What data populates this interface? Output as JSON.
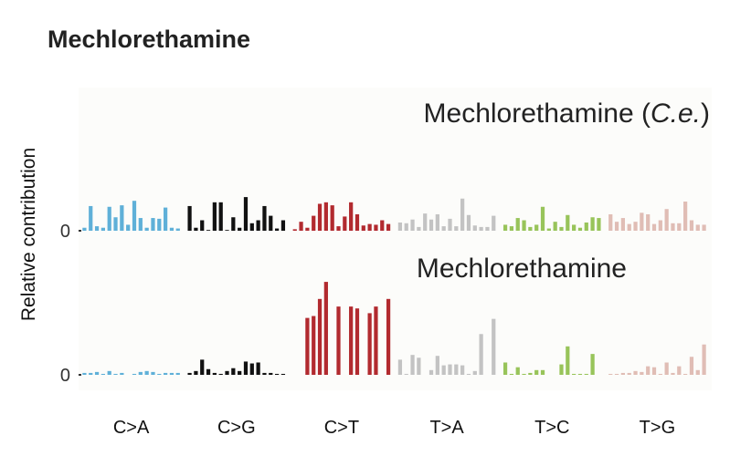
{
  "title": "Mechlorethamine",
  "chart_data": {
    "type": "bar",
    "ylabel": "Relative contribution",
    "ytick_label": "0",
    "categories": [
      "C>A",
      "C>G",
      "C>T",
      "T>A",
      "T>C",
      "T>G"
    ],
    "category_colors": [
      "#5fb0d8",
      "#111111",
      "#b22a2f",
      "#c3c3c3",
      "#98c45a",
      "#e0bdb5"
    ],
    "panels": [
      {
        "title_parts": [
          {
            "text": "Mechlorethamine (",
            "italic": false
          },
          {
            "text": "C.e.",
            "italic": true
          },
          {
            "text": ")",
            "italic": false
          }
        ],
        "ymax": 100,
        "values": [
          [
            4,
            33,
            6,
            4,
            32,
            18,
            34,
            8,
            40,
            17,
            4,
            17,
            16,
            31,
            4,
            3
          ],
          [
            33,
            4,
            14,
            1,
            38,
            38,
            1,
            18,
            4,
            45,
            10,
            14,
            33,
            20,
            3,
            14
          ],
          [
            2,
            12,
            4,
            20,
            36,
            38,
            34,
            6,
            19,
            38,
            22,
            7,
            9,
            8,
            14,
            9
          ],
          [
            11,
            10,
            15,
            5,
            23,
            15,
            22,
            6,
            16,
            6,
            43,
            21,
            7,
            5,
            5,
            20
          ],
          [
            8,
            6,
            17,
            14,
            5,
            8,
            32,
            3,
            12,
            5,
            21,
            8,
            4,
            11,
            18,
            17
          ],
          [
            22,
            12,
            17,
            9,
            12,
            24,
            22,
            9,
            14,
            29,
            10,
            10,
            39,
            14,
            8,
            8
          ]
        ]
      },
      {
        "title_parts": [
          {
            "text": "Mechlorethamine",
            "italic": false
          }
        ],
        "ymax": 100,
        "values": [
          [
            2,
            2,
            3,
            1,
            4,
            1,
            2,
            0,
            1,
            3,
            4,
            3,
            1,
            2,
            2,
            2
          ],
          [
            2,
            4,
            16,
            6,
            2,
            1,
            4,
            7,
            4,
            14,
            12,
            13,
            2,
            2,
            1,
            1
          ],
          [
            0,
            0,
            60,
            62,
            80,
            98,
            0,
            72,
            0,
            72,
            70,
            0,
            65,
            72,
            0,
            80
          ],
          [
            16,
            1,
            21,
            18,
            0,
            5,
            20,
            10,
            11,
            11,
            10,
            1,
            4,
            43,
            0,
            59
          ],
          [
            13,
            1,
            8,
            1,
            2,
            5,
            5,
            0,
            0,
            11,
            30,
            1,
            1,
            1,
            22,
            0
          ],
          [
            1,
            1,
            2,
            2,
            4,
            3,
            9,
            8,
            1,
            13,
            2,
            9,
            1,
            19,
            5,
            32
          ]
        ]
      }
    ]
  }
}
